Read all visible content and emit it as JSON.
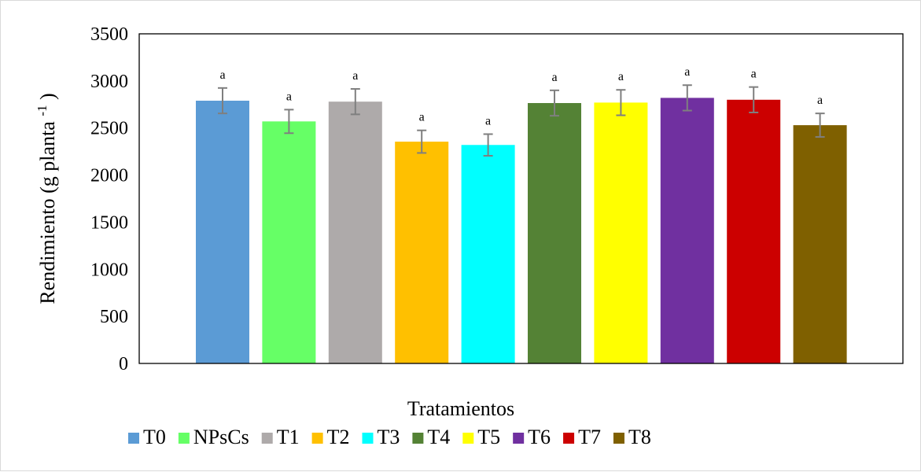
{
  "chart_data": {
    "type": "bar",
    "categories": [
      "T0",
      "NPsCs",
      "T1",
      "T2",
      "T3",
      "T4",
      "T5",
      "T6",
      "T7",
      "T8"
    ],
    "values": [
      2790,
      2570,
      2780,
      2355,
      2320,
      2765,
      2770,
      2820,
      2800,
      2530
    ],
    "errors": [
      135,
      125,
      135,
      120,
      115,
      135,
      135,
      135,
      135,
      125
    ],
    "significance": [
      "a",
      "a",
      "a",
      "a",
      "a",
      "a",
      "a",
      "a",
      "a",
      "a"
    ],
    "colors": [
      "#5b9bd5",
      "#66ff66",
      "#aeaaaa",
      "#ffc000",
      "#00ffff",
      "#548235",
      "#ffff00",
      "#7030a0",
      "#cc0000",
      "#7f6000"
    ],
    "error_bar_color": "#7f7f7f",
    "xlabel": "Tratamientos",
    "ylabel_main": "Rendimiento (g planta",
    "ylabel_sup": "-1",
    "ylabel_close": ")",
    "ylim": [
      0,
      3500
    ],
    "yticks": [
      "0",
      "500",
      "1000",
      "1500",
      "2000",
      "2500",
      "3000",
      "3500"
    ],
    "grid": false,
    "legend_position": "bottom"
  }
}
